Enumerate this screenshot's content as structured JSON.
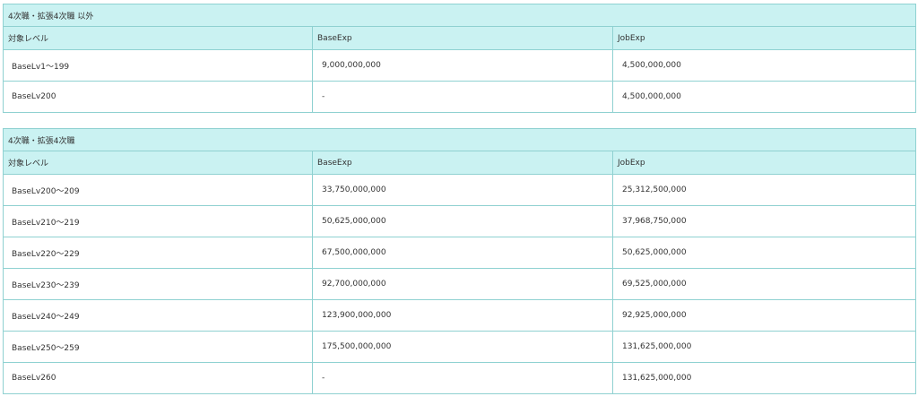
{
  "table_a": {
    "title": "4次職・拡張4次職 以外",
    "headers": [
      "対象レベル",
      "BaseExp",
      "JobExp"
    ],
    "rows": [
      [
        "BaseLv1～199",
        "9,000,000,000",
        "4,500,000,000"
      ],
      [
        "BaseLv200",
        "-",
        "4,500,000,000"
      ]
    ]
  },
  "table_b": {
    "title": "4次職・拡張4次職",
    "headers": [
      "対象レベル",
      "BaseExp",
      "JobExp"
    ],
    "rows": [
      [
        "BaseLv200～209",
        "33,750,000,000",
        "25,312,500,000"
      ],
      [
        "BaseLv210～219",
        "50,625,000,000",
        "37,968,750,000"
      ],
      [
        "BaseLv220～229",
        "67,500,000,000",
        "50,625,000,000"
      ],
      [
        "BaseLv230～239",
        "92,700,000,000",
        "69,525,000,000"
      ],
      [
        "BaseLv240～249",
        "123,900,000,000",
        "92,925,000,000"
      ],
      [
        "BaseLv250～259",
        "175,500,000,000",
        "131,625,000,000"
      ],
      [
        "BaseLv260",
        "-",
        "131,625,000,000"
      ]
    ]
  },
  "colors": {
    "header_bg": "#caf2f2",
    "border": "#8fd1d1",
    "text": "#333333"
  }
}
